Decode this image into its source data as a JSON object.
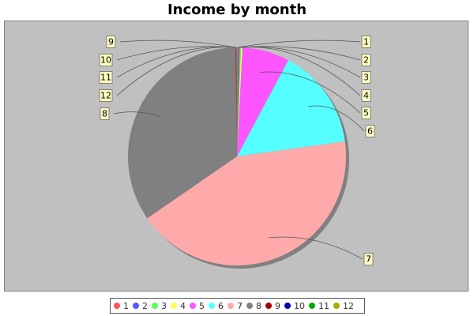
{
  "chart_data": {
    "type": "pie",
    "title": "Income by month",
    "categories": [
      "1",
      "2",
      "3",
      "4",
      "5",
      "6",
      "7",
      "8",
      "9",
      "10",
      "11",
      "12"
    ],
    "values": [
      0.2,
      0.2,
      0.2,
      0.2,
      7.0,
      15.0,
      42.6,
      34.4,
      0.05,
      0.05,
      0.05,
      0.05
    ],
    "colors": [
      "#ff5555",
      "#5555ff",
      "#55ff55",
      "#ffff55",
      "#ff55ff",
      "#55ffff",
      "#ffaaaa",
      "#808080",
      "#aa0000",
      "#0000aa",
      "#00aa00",
      "#aaaa00"
    ],
    "legend_position": "bottom",
    "start_angle_deg": 90,
    "direction": "clockwise"
  }
}
